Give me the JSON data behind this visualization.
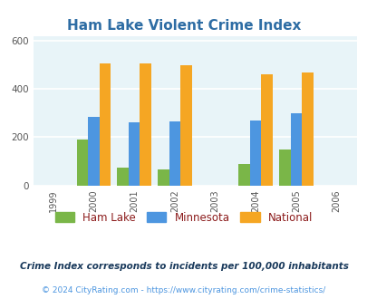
{
  "title": "Ham Lake Violent Crime Index",
  "years": [
    1999,
    2000,
    2001,
    2002,
    2003,
    2004,
    2005,
    2006
  ],
  "data_years": [
    2000,
    2001,
    2002,
    2004,
    2005
  ],
  "ham_lake": [
    190,
    75,
    65,
    90,
    148
  ],
  "minnesota": [
    283,
    263,
    267,
    270,
    300
  ],
  "national": [
    507,
    507,
    497,
    462,
    468
  ],
  "bar_colors": {
    "ham_lake": "#7ab648",
    "minnesota": "#4d96e0",
    "national": "#f5a623"
  },
  "ylim": [
    0,
    620
  ],
  "yticks": [
    0,
    200,
    400,
    600
  ],
  "bg_color": "#e8f4f8",
  "grid_color": "#ffffff",
  "title_color": "#2e6da4",
  "legend_labels": [
    "Ham Lake",
    "Minnesota",
    "National"
  ],
  "legend_text_color": "#8b1a1a",
  "footnote1": "Crime Index corresponds to incidents per 100,000 inhabitants",
  "footnote2": "© 2024 CityRating.com - https://www.cityrating.com/crime-statistics/",
  "footnote1_color": "#1a3a5c",
  "footnote2_color": "#4d96e0",
  "bar_width": 0.28
}
